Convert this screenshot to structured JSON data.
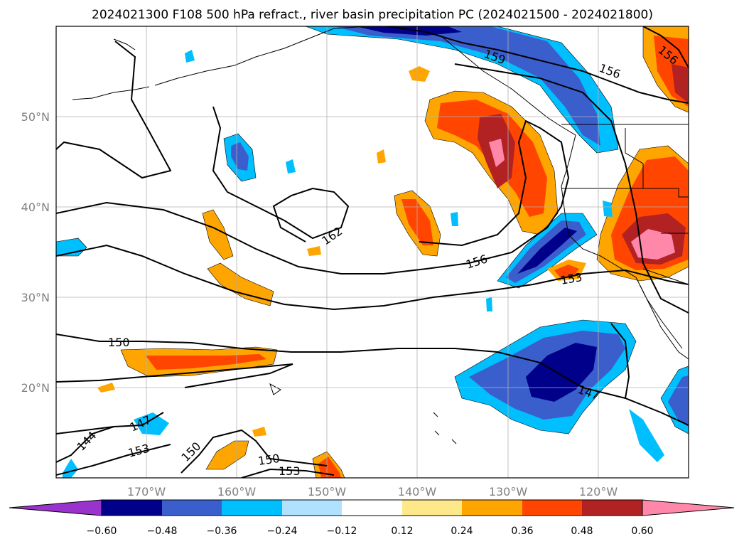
{
  "title": "2024021300 F108 500 hPa refract., river basin precipitation PC (2024021500 - 2024021800)",
  "map": {
    "lon_range": [
      -180,
      -110
    ],
    "lat_range": [
      10,
      60
    ],
    "lon_ticks": [
      {
        "lon": -170,
        "label": "170°W"
      },
      {
        "lon": -160,
        "label": "160°W"
      },
      {
        "lon": -150,
        "label": "150°W"
      },
      {
        "lon": -140,
        "label": "140°W"
      },
      {
        "lon": -130,
        "label": "130°W"
      },
      {
        "lon": -120,
        "label": "120°W"
      }
    ],
    "lat_ticks": [
      {
        "lat": 20,
        "label": "20°N"
      },
      {
        "lat": 30,
        "label": "30°N"
      },
      {
        "lat": 40,
        "label": "40°N"
      },
      {
        "lat": 50,
        "label": "50°N"
      }
    ],
    "grid": true
  },
  "colorbar": {
    "ticks": [
      "−0.60",
      "−0.48",
      "−0.36",
      "−0.24",
      "−0.12",
      "0.12",
      "0.24",
      "0.36",
      "0.48",
      "0.60"
    ],
    "colors": [
      "#9a32cd",
      "#00008b",
      "#3a5fcd",
      "#00bfff",
      "#b0e2ff",
      "#ffffff",
      "#fde88a",
      "#ffa500",
      "#ff4500",
      "#b22222",
      "#ff88aa"
    ],
    "extend": "both"
  },
  "contour_labels": [
    "159",
    "156",
    "156",
    "162",
    "156",
    "153",
    "150",
    "147",
    "147",
    "144",
    "153",
    "150",
    "150",
    "153"
  ]
}
